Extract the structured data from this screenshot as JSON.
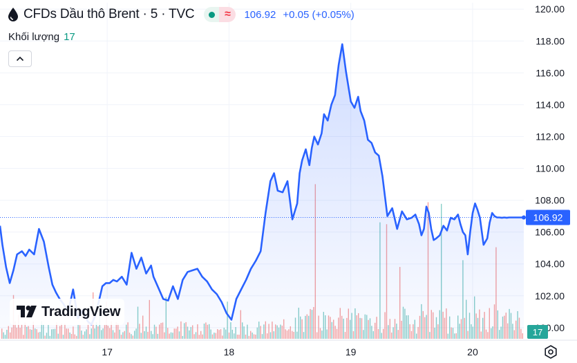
{
  "header": {
    "title": "CFDs Dầu thô Brent · 5 · TVC",
    "pill_wave": "≈",
    "price": "106.92",
    "change": "+0.05 (+0.05%)"
  },
  "volume_legend": {
    "label": "Khối lượng",
    "value": "17"
  },
  "logo": {
    "text": "TradingView"
  },
  "icons": {
    "symbol": "oil-drop-icon",
    "collapse": "chevron-up-icon",
    "settings": "settings-gear-icon",
    "logo": "tradingview-logo-icon"
  },
  "colors": {
    "line": "#2962ff",
    "area": "#e3eafe",
    "volume_up": "#26a69a",
    "volume_down": "#ef5350",
    "last_price_bg": "#2962ff",
    "last_volume_bg": "#26a69a"
  },
  "chart_data": {
    "type": "area",
    "y_ticks": [
      "120.00",
      "118.00",
      "116.00",
      "114.00",
      "112.00",
      "110.00",
      "108.00",
      "106.00",
      "104.00",
      "102.00",
      "100.00"
    ],
    "ylim": [
      99.3,
      120.4
    ],
    "x_ticks": [
      {
        "label": "17",
        "x": 1.0
      },
      {
        "label": "18",
        "x": 2.0
      },
      {
        "label": "19",
        "x": 3.0
      },
      {
        "label": "20",
        "x": 4.0
      }
    ],
    "xlim": [
      0.12,
      4.42
    ],
    "last_price_label": "106.92",
    "last_volume_label": "17",
    "grid": true,
    "series": [
      {
        "x": [
          0.12,
          0.14,
          0.17,
          0.2,
          0.23,
          0.26,
          0.3,
          0.33,
          0.36,
          0.4,
          0.44,
          0.48,
          0.52,
          0.55,
          0.58,
          0.61,
          0.64,
          0.68,
          0.72,
          0.76,
          0.8,
          0.84,
          0.87,
          0.9,
          0.93,
          0.96,
          0.99,
          1.02,
          1.05,
          1.08,
          1.12,
          1.16,
          1.2,
          1.24,
          1.28,
          1.32,
          1.36,
          1.38,
          1.42,
          1.46,
          1.5,
          1.54,
          1.58,
          1.62,
          1.66,
          1.7,
          1.74,
          1.78,
          1.82,
          1.86,
          1.9,
          1.94,
          1.98,
          2.02,
          2.06,
          2.1,
          2.14,
          2.18,
          2.22,
          2.26,
          2.3,
          2.34,
          2.37,
          2.4,
          2.44,
          2.48,
          2.52,
          2.56,
          2.58,
          2.6,
          2.63,
          2.66,
          2.68,
          2.7,
          2.73,
          2.76,
          2.78,
          2.81,
          2.84,
          2.87,
          2.9,
          2.93,
          2.96,
          3.0,
          3.03,
          3.06,
          3.08,
          3.11,
          3.14,
          3.17,
          3.2,
          3.23,
          3.26,
          3.3,
          3.34,
          3.38,
          3.42,
          3.46,
          3.5,
          3.53,
          3.56,
          3.58,
          3.6,
          3.62,
          3.64,
          3.66,
          3.68,
          3.7,
          3.73,
          3.76,
          3.79,
          3.82,
          3.85,
          3.88,
          3.9,
          3.92,
          3.94,
          3.96,
          3.98,
          4.0,
          4.02,
          4.04,
          4.06,
          4.09,
          4.12,
          4.14,
          4.16,
          4.18,
          4.2,
          4.22,
          4.24,
          4.26,
          4.28,
          4.3,
          4.33,
          4.36,
          4.38,
          4.4,
          4.42
        ],
        "values": [
          106.4,
          105.2,
          103.8,
          102.8,
          103.6,
          104.6,
          104.8,
          104.5,
          104.9,
          104.6,
          106.2,
          105.4,
          103.8,
          102.7,
          102.2,
          101.8,
          101.5,
          101.0,
          102.4,
          100.6,
          101.1,
          100.4,
          100.2,
          100.7,
          101.6,
          102.6,
          102.8,
          102.8,
          103.0,
          102.9,
          103.2,
          102.7,
          104.7,
          103.7,
          104.4,
          103.4,
          103.9,
          103.2,
          102.5,
          101.8,
          101.7,
          102.6,
          101.8,
          103.0,
          103.5,
          103.6,
          103.7,
          103.2,
          102.9,
          102.4,
          102.1,
          101.6,
          100.9,
          100.5,
          101.8,
          102.4,
          103.0,
          103.7,
          104.2,
          104.8,
          107.2,
          109.2,
          109.7,
          108.6,
          108.5,
          109.2,
          106.8,
          107.8,
          109.7,
          110.5,
          111.2,
          110.2,
          111.3,
          112.0,
          111.5,
          112.2,
          113.4,
          113.0,
          114.0,
          114.6,
          116.5,
          117.8,
          116.1,
          114.2,
          113.8,
          114.5,
          113.6,
          113.0,
          111.8,
          111.6,
          111.0,
          110.8,
          109.5,
          107.0,
          107.5,
          106.2,
          107.3,
          106.8,
          106.9,
          107.1,
          106.5,
          105.8,
          106.2,
          107.6,
          107.2,
          106.2,
          105.5,
          105.6,
          105.8,
          106.4,
          106.1,
          106.9,
          106.8,
          107.1,
          106.5,
          106.0,
          105.8,
          104.6,
          106.0,
          107.2,
          107.8,
          107.4,
          106.9,
          105.2,
          105.6,
          106.6,
          107.2,
          107.0,
          106.92,
          106.92,
          106.9,
          106.92,
          106.9,
          106.92,
          106.92,
          106.92,
          106.92,
          106.92,
          106.92
        ]
      }
    ]
  }
}
